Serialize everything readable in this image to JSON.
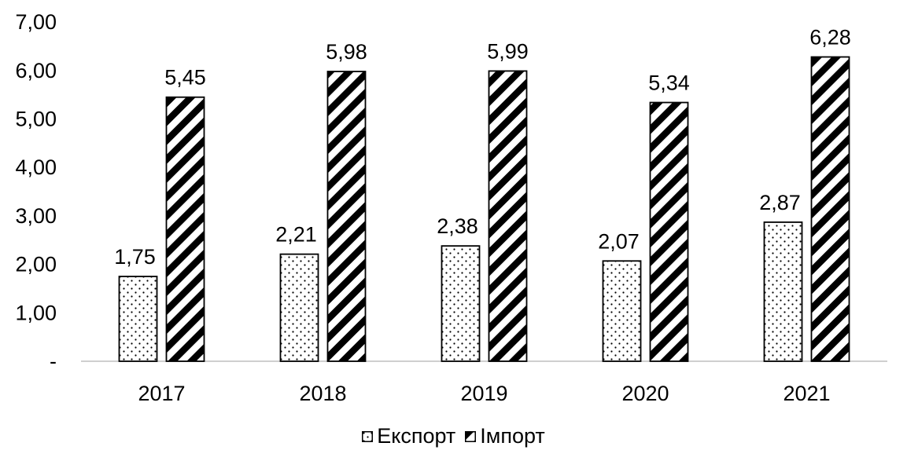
{
  "chart_data": {
    "type": "bar",
    "title": "",
    "xlabel": "",
    "ylabel": "",
    "categories": [
      "2017",
      "2018",
      "2019",
      "2020",
      "2021"
    ],
    "series": [
      {
        "name": "Експорт",
        "values": [
          1.75,
          2.21,
          2.38,
          2.07,
          2.87
        ],
        "labels": [
          "1,75",
          "2,21",
          "2,38",
          "2,07",
          "2,87"
        ],
        "pattern": "dots"
      },
      {
        "name": "Імпорт",
        "values": [
          5.45,
          5.98,
          5.99,
          5.34,
          6.28
        ],
        "labels": [
          "5,45",
          "5,98",
          "5,99",
          "5,34",
          "6,28"
        ],
        "pattern": "diagonal-stripes"
      }
    ],
    "ylim": [
      0,
      7
    ],
    "yticks": [
      0,
      1,
      2,
      3,
      4,
      5,
      6,
      7
    ],
    "ytick_labels": [
      "-",
      "1,00",
      "2,00",
      "3,00",
      "4,00",
      "5,00",
      "6,00",
      "7,00"
    ],
    "grid": false,
    "legend_position": "bottom",
    "colors": {
      "bar_border": "#000000",
      "axis": "#bfbfbf",
      "text": "#000000"
    }
  }
}
